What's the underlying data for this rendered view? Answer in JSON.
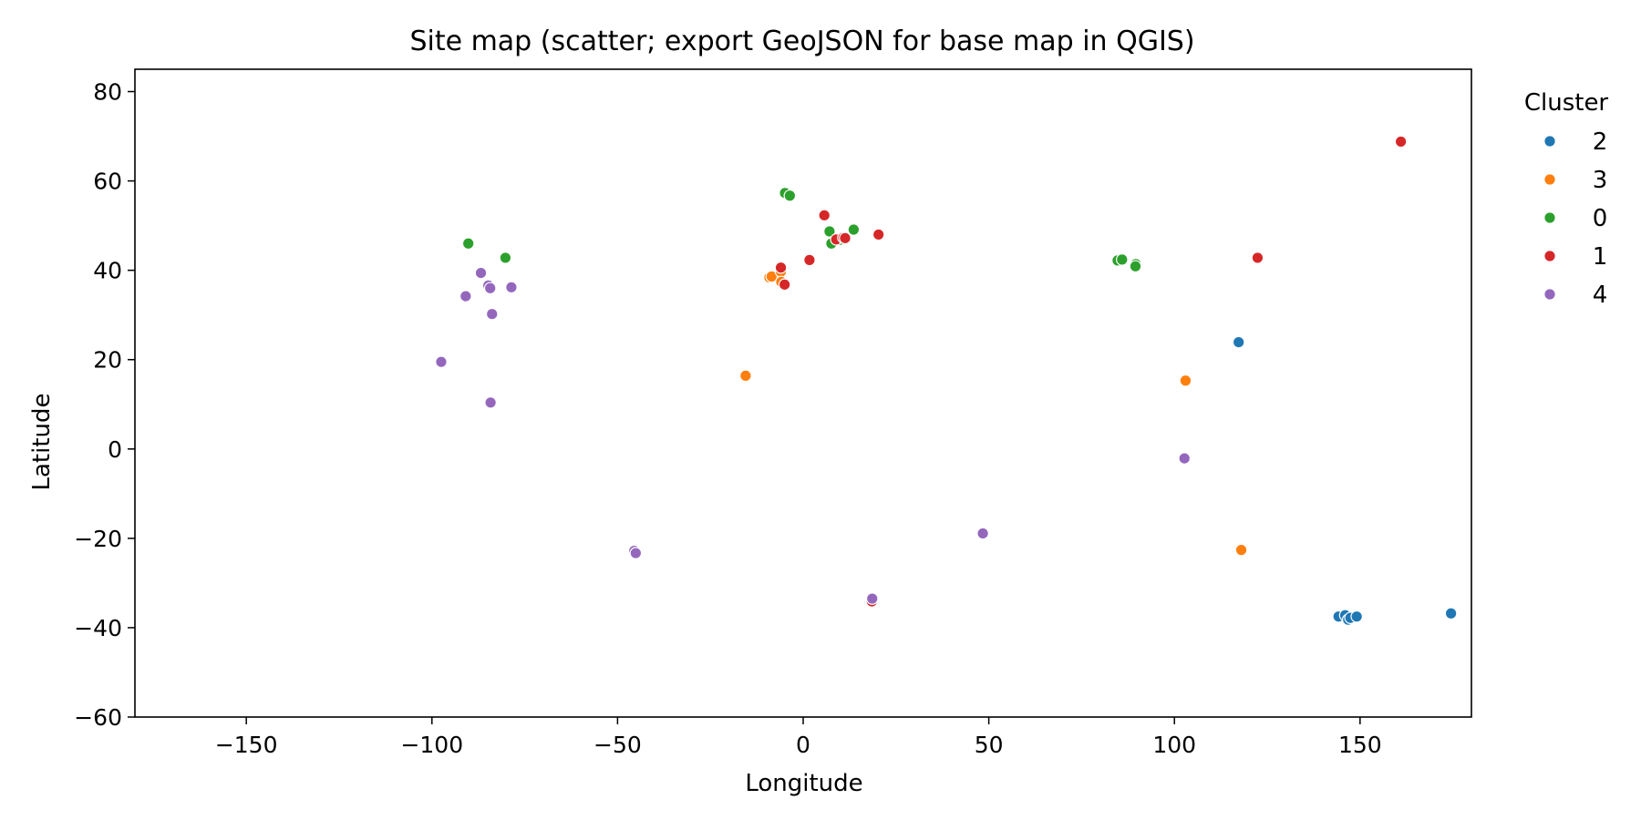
{
  "chart_data": {
    "type": "scatter",
    "title": "Site map (scatter; export GeoJSON for base map in QGIS)",
    "xlabel": "Longitude",
    "ylabel": "Latitude",
    "xlim": [
      -180,
      180
    ],
    "ylim": [
      -60,
      85
    ],
    "xticks": [
      -150,
      -100,
      -50,
      0,
      50,
      100,
      150
    ],
    "xtick_labels": [
      "−150",
      "−100",
      "−50",
      "0",
      "50",
      "100",
      "150"
    ],
    "yticks": [
      80,
      60,
      40,
      20,
      0,
      -20,
      -40,
      -60
    ],
    "ytick_labels": [
      "80",
      "60",
      "40",
      "20",
      "0",
      "−20",
      "−40",
      "−60"
    ],
    "grid": false,
    "legend": {
      "title": "Cluster",
      "placement": "outside-upper-right"
    },
    "series": [
      {
        "name": "2",
        "color": "#1f77b4",
        "points": [
          [
            117.3,
            23.9
          ],
          [
            144.2,
            -37.5
          ],
          [
            146.0,
            -37.2
          ],
          [
            146.8,
            -38.2
          ],
          [
            147.4,
            -37.8
          ],
          [
            149.1,
            -37.5
          ],
          [
            174.5,
            -36.8
          ]
        ]
      },
      {
        "name": "3",
        "color": "#ff7f0e",
        "points": [
          [
            -9.1,
            38.4
          ],
          [
            -8.5,
            38.6
          ],
          [
            -6.0,
            39.7
          ],
          [
            -5.9,
            37.4
          ],
          [
            -15.5,
            16.4
          ],
          [
            103.0,
            15.3
          ],
          [
            118.0,
            -22.6
          ]
        ]
      },
      {
        "name": "0",
        "color": "#2ca02c",
        "points": [
          [
            -90.2,
            46.0
          ],
          [
            -80.2,
            42.8
          ],
          [
            -4.9,
            57.3
          ],
          [
            -3.6,
            56.7
          ],
          [
            7.1,
            48.7
          ],
          [
            7.6,
            46.0
          ],
          [
            9.8,
            46.8
          ],
          [
            13.6,
            49.1
          ],
          [
            84.7,
            42.2
          ],
          [
            85.9,
            42.4
          ],
          [
            89.6,
            41.4
          ],
          [
            89.5,
            40.9
          ]
        ]
      },
      {
        "name": "1",
        "color": "#d62728",
        "points": [
          [
            5.7,
            52.3
          ],
          [
            -6.0,
            40.6
          ],
          [
            -5.0,
            36.8
          ],
          [
            1.7,
            42.3
          ],
          [
            8.9,
            46.9
          ],
          [
            10.8,
            47.3
          ],
          [
            11.3,
            47.2
          ],
          [
            20.3,
            48.0
          ],
          [
            18.5,
            -34.1
          ],
          [
            122.4,
            42.8
          ],
          [
            161.0,
            68.8
          ]
        ]
      },
      {
        "name": "4",
        "color": "#9467bd",
        "points": [
          [
            -86.8,
            39.4
          ],
          [
            -84.8,
            36.6
          ],
          [
            -84.3,
            36.0
          ],
          [
            -78.6,
            36.2
          ],
          [
            -90.9,
            34.2
          ],
          [
            -83.8,
            30.2
          ],
          [
            -97.5,
            19.5
          ],
          [
            -84.2,
            10.4
          ],
          [
            -45.5,
            -22.8
          ],
          [
            -45.1,
            -23.3
          ],
          [
            18.6,
            -33.5
          ],
          [
            48.4,
            -18.9
          ],
          [
            102.7,
            -2.1
          ]
        ]
      }
    ]
  }
}
